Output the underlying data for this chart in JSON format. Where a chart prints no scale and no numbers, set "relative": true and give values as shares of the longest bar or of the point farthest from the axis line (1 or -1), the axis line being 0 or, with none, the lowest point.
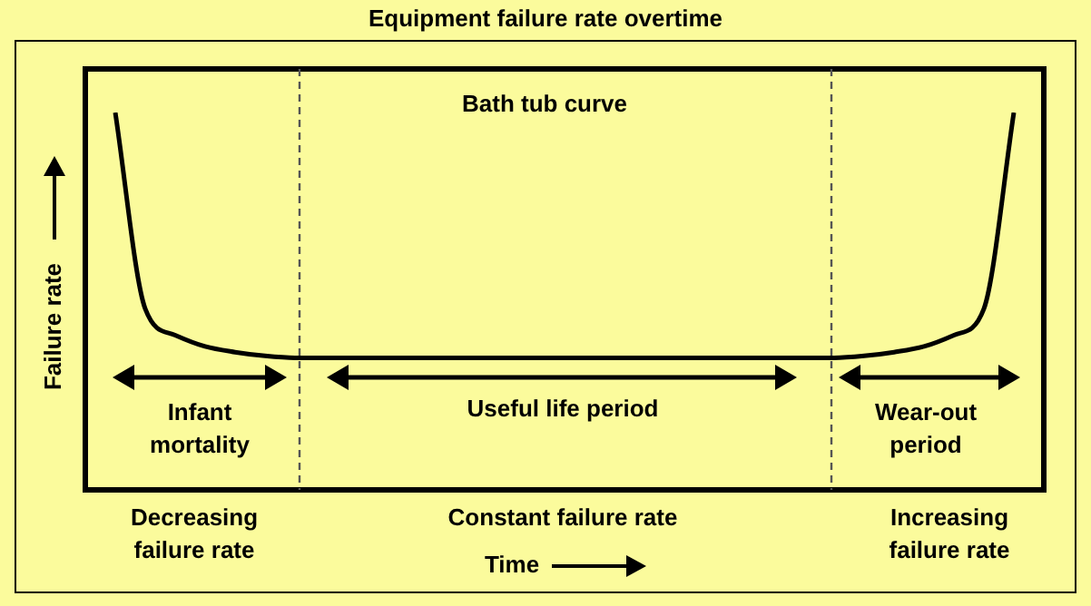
{
  "chart_data": {
    "type": "line",
    "title": "Equipment failure rate overtime",
    "subtitle": "Bath tub curve",
    "xlabel": "Time",
    "ylabel": "Failure rate",
    "relative": true,
    "marker": "none",
    "line_style": "solid",
    "legend": false,
    "categories": [
      null,
      null,
      null,
      null,
      null,
      null,
      null,
      null,
      null,
      null,
      null,
      null,
      null,
      null,
      null,
      null,
      null,
      null,
      null,
      null,
      null,
      null,
      null,
      null,
      null,
      null,
      null,
      null,
      null,
      null,
      null,
      null,
      null
    ],
    "series": [
      {
        "color": "#000000",
        "values": [
          null,
          1.0,
          0.48,
          0.41,
          0.38,
          0.365,
          0.355,
          0.35,
          0.35,
          0.35,
          0.35,
          0.35,
          0.35,
          0.35,
          0.35,
          0.35,
          0.35,
          0.35,
          0.35,
          0.35,
          0.35,
          0.35,
          0.35,
          0.35,
          0.35,
          0.35,
          0.355,
          0.365,
          0.38,
          0.41,
          0.48,
          1.0,
          null
        ]
      }
    ],
    "annotations": [
      "Infant mortality",
      "Useful life period",
      "Wear-out period",
      "Decreasing failure rate",
      "Constant failure rate",
      "Increasing failure rate"
    ]
  }
}
